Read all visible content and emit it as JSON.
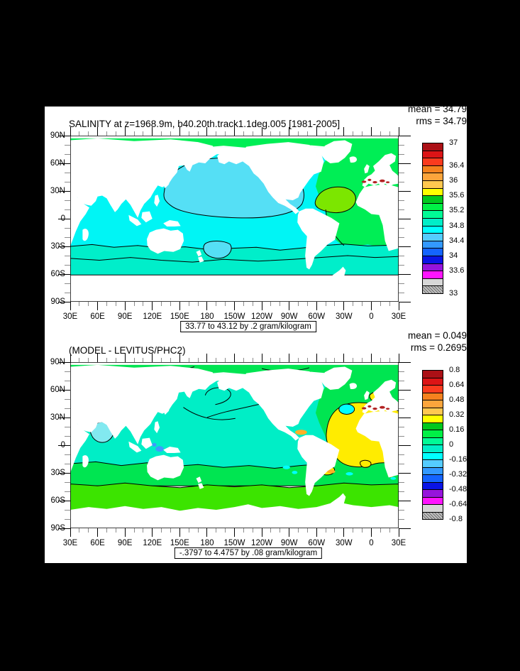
{
  "colors": {
    "background": "#000000",
    "figure": "#ffffff",
    "frame": "#000000",
    "minor_tick": "#8c8c8c",
    "land": "#ffffff",
    "palette": [
      "#ab1016",
      "#dc1416",
      "#fb3b1e",
      "#f5821e",
      "#fca53c",
      "#ffc850",
      "#ffff00",
      "#00c81e",
      "#00f046",
      "#00fa96",
      "#00eec8",
      "#00ffff",
      "#55ccff",
      "#3399ff",
      "#1464ff",
      "#0a14e6",
      "#9614dc",
      "#ff14ff",
      "#d7d7d7",
      "#a8a8a8"
    ]
  },
  "panels": [
    {
      "title": "SALINITY at z=1968.9m, b40.20th.track1.1deg.005 [1981-2005]",
      "stats": [
        "mean = 34.79",
        "rms = 34.79"
      ],
      "caption": "33.77 to 43.12 by .2 gram/kilogram",
      "lat_labels": [
        "90N",
        "60N",
        "30N",
        "0",
        "30S",
        "60S",
        "90S"
      ],
      "lon_labels": [
        "30E",
        "60E",
        "90E",
        "120E",
        "150E",
        "180",
        "150W",
        "120W",
        "90W",
        "60W",
        "30W",
        "0",
        "30E"
      ],
      "colorbar": {
        "labels": [
          "37",
          "36.4",
          "36",
          "35.6",
          "35.2",
          "34.8",
          "34.4",
          "34",
          "33.6",
          "33"
        ],
        "label_boundaries": [
          0,
          3,
          5,
          7,
          9,
          11,
          13,
          15,
          17,
          20
        ]
      }
    },
    {
      "title": "(MODEL - LEVITUS/PHC2)",
      "stats": [
        "mean = 0.049",
        "rms = 0.2695"
      ],
      "caption": "-.3797 to 4.4757 by .08 gram/kilogram",
      "lat_labels": [
        "90N",
        "60N",
        "30N",
        "0",
        "30S",
        "60S",
        "90S"
      ],
      "lon_labels": [
        "30E",
        "60E",
        "90E",
        "120E",
        "150E",
        "180",
        "150W",
        "120W",
        "90W",
        "60W",
        "30W",
        "0",
        "30E"
      ],
      "colorbar": {
        "labels": [
          "0.8",
          "0.64",
          "0.48",
          "0.32",
          "0.16",
          "0",
          "-0.16",
          "-0.32",
          "-0.48",
          "-0.64",
          "-0.8"
        ],
        "label_boundaries": [
          0,
          2,
          4,
          6,
          8,
          10,
          12,
          14,
          16,
          18,
          20
        ]
      }
    }
  ],
  "chart_data": [
    {
      "type": "heatmap",
      "subtype": "filled-contour-world-map",
      "title": "SALINITY at z=1968.9m, b40.20th.track1.1deg.005 [1981-2005]",
      "stats": {
        "mean": 34.79,
        "rms": 34.79
      },
      "range_note": "33.77 to 43.12 by .2 gram/kilogram",
      "units": "gram/kilogram",
      "x_ticks": [
        "30E",
        "60E",
        "90E",
        "120E",
        "150E",
        "180",
        "150W",
        "120W",
        "90W",
        "60W",
        "30W",
        "0",
        "30E"
      ],
      "y_ticks": [
        "90N",
        "60N",
        "30N",
        "0",
        "30S",
        "60S",
        "90S"
      ],
      "colorbar_levels": [
        37,
        36.4,
        36,
        35.6,
        35.2,
        34.8,
        34.4,
        34,
        33.6,
        33
      ],
      "contour_interval": 0.2,
      "legend_position": "right",
      "regions": {
        "north_pacific": 34.6,
        "indian_south_pacific": 34.7,
        "southern_ocean_band": 34.7,
        "atlantic": 34.95,
        "subtropical_north_atlantic": 35.3,
        "mediterranean_outflow_spots": 37.0,
        "sea_of_japan_spot": 34.1,
        "arctic_band": 34.95
      }
    },
    {
      "type": "heatmap",
      "subtype": "filled-contour-world-map",
      "title": "(MODEL - LEVITUS/PHC2)",
      "stats": {
        "mean": 0.049,
        "rms": 0.2695
      },
      "range_note": "-.3797 to 4.4757 by .08 gram/kilogram",
      "units": "gram/kilogram",
      "x_ticks": [
        "30E",
        "60E",
        "90E",
        "120E",
        "150E",
        "180",
        "150W",
        "120W",
        "90W",
        "60W",
        "30W",
        "0",
        "30E"
      ],
      "y_ticks": [
        "90N",
        "60N",
        "30N",
        "0",
        "30S",
        "60S",
        "90S"
      ],
      "colorbar_levels": [
        0.8,
        0.64,
        0.48,
        0.32,
        0.16,
        0,
        -0.16,
        -0.32,
        -0.48,
        -0.64,
        -0.8
      ],
      "contour_interval": 0.08,
      "legend_position": "right",
      "regions": {
        "pacific_indian": -0.08,
        "mid_latitude_band": 0.08,
        "southern_band": 0.16,
        "atlantic": 0.08,
        "north_tropical_atlantic": 0.3,
        "mediterranean_outflow_spots": 0.8,
        "arabian_sea_patch": -0.2,
        "indonesian_spots": -0.35
      }
    }
  ]
}
